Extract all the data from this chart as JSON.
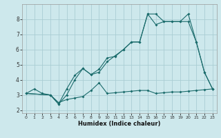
{
  "xlabel": "Humidex (Indice chaleur)",
  "bg_color": "#cde8ec",
  "grid_color": "#aacdd4",
  "line_color": "#1a6b6b",
  "xlim": [
    -0.5,
    23.5
  ],
  "ylim": [
    1.8,
    9.0
  ],
  "xticks": [
    0,
    1,
    2,
    3,
    4,
    5,
    6,
    7,
    8,
    9,
    10,
    11,
    12,
    13,
    14,
    15,
    16,
    17,
    18,
    19,
    20,
    21,
    22,
    23
  ],
  "yticks": [
    2,
    3,
    4,
    5,
    6,
    7,
    8
  ],
  "line1_x": [
    0,
    1,
    2,
    3,
    4,
    5,
    6,
    7,
    8,
    9,
    10,
    11,
    12,
    13,
    14,
    15,
    16,
    17,
    18,
    19,
    20,
    21,
    22,
    23
  ],
  "line1_y": [
    3.1,
    3.4,
    3.1,
    3.0,
    2.5,
    2.7,
    2.8,
    2.9,
    3.3,
    3.8,
    3.1,
    3.15,
    3.2,
    3.25,
    3.3,
    3.3,
    3.1,
    3.15,
    3.2,
    3.2,
    3.25,
    3.3,
    3.35,
    3.4
  ],
  "line2_x": [
    0,
    3,
    4,
    5,
    6,
    7,
    8,
    9,
    10,
    11,
    12,
    13,
    14,
    15,
    16,
    17,
    18,
    19,
    20,
    21,
    22,
    23
  ],
  "line2_y": [
    3.1,
    3.0,
    2.4,
    3.4,
    4.3,
    4.75,
    4.35,
    4.7,
    5.45,
    5.55,
    6.0,
    6.5,
    6.5,
    8.35,
    8.35,
    7.85,
    7.85,
    7.85,
    8.35,
    6.5,
    4.5,
    3.4
  ],
  "line3_x": [
    0,
    3,
    4,
    5,
    6,
    7,
    8,
    9,
    10,
    11,
    12,
    13,
    14,
    15,
    16,
    17,
    18,
    19,
    20,
    21,
    22,
    23
  ],
  "line3_y": [
    3.1,
    3.0,
    2.4,
    3.0,
    4.0,
    4.75,
    4.35,
    4.5,
    5.2,
    5.6,
    6.0,
    6.5,
    6.5,
    8.35,
    7.65,
    7.85,
    7.85,
    7.85,
    7.85,
    6.5,
    4.5,
    3.4
  ]
}
